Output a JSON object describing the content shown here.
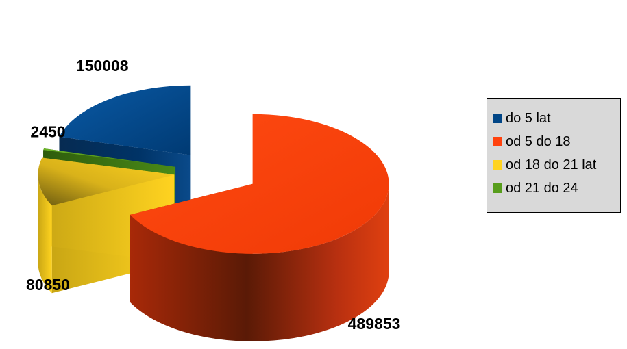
{
  "chart_data": {
    "type": "pie",
    "three_d": true,
    "exploded": true,
    "categories": [
      "do 5 lat",
      "od 5 do 18",
      "od 18 do 21 lat",
      "od 21 do 24"
    ],
    "values": [
      150008,
      489853,
      80850,
      2450
    ],
    "data_labels": [
      "150008",
      "489853",
      "80850",
      "2450"
    ],
    "colors": [
      "#004586",
      "#ff420e",
      "#ffd320",
      "#579d1c"
    ],
    "legend_position": "right"
  }
}
